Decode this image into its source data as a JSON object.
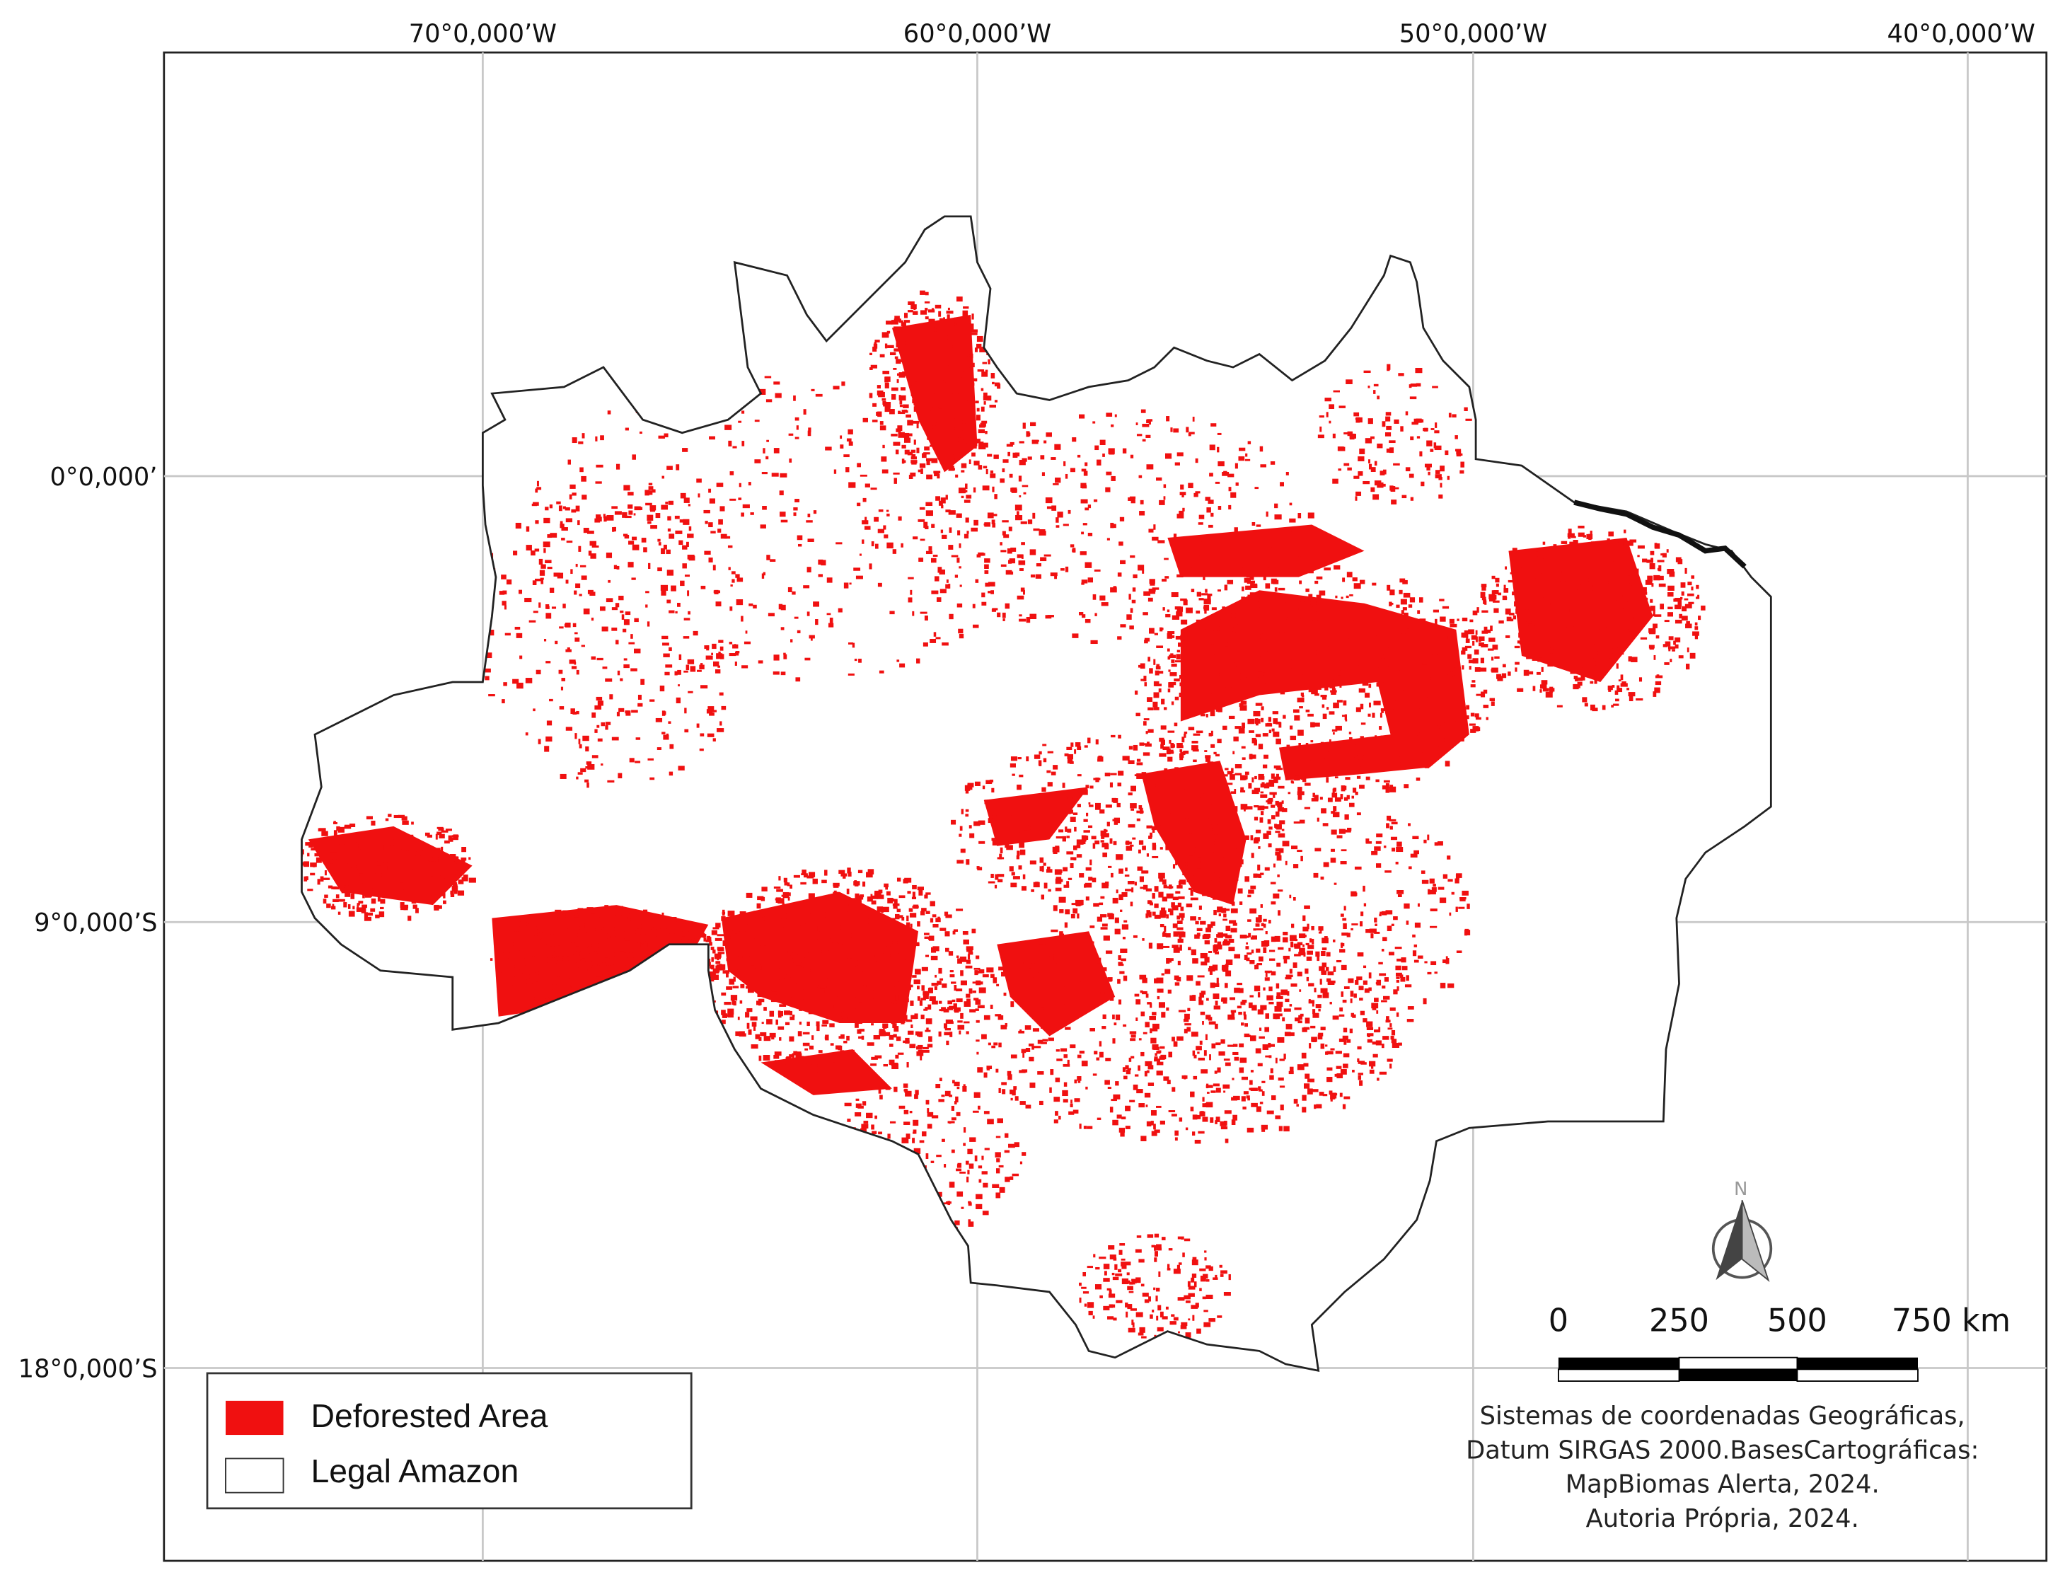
{
  "graticule": {
    "longitudes": [
      "70°0,000’W",
      "60°0,000’W",
      "50°0,000’W",
      "40°0,000’W"
    ],
    "latitudes": [
      "0°0,000’",
      "9°0,000’S",
      "18°0,000’S"
    ]
  },
  "legend": {
    "items": [
      "Deforested Area",
      "Legal Amazon"
    ]
  },
  "north_arrow": {
    "label": "N"
  },
  "scale_bar": {
    "labels": [
      "0",
      "250",
      "500",
      "750 km"
    ]
  },
  "credits": [
    "Sistemas de coordenadas Geográficas,",
    "Datum SIRGAS 2000.BasesCartográficas:",
    "MapBiomas Alerta, 2024.",
    "Autoria Própria, 2024."
  ]
}
